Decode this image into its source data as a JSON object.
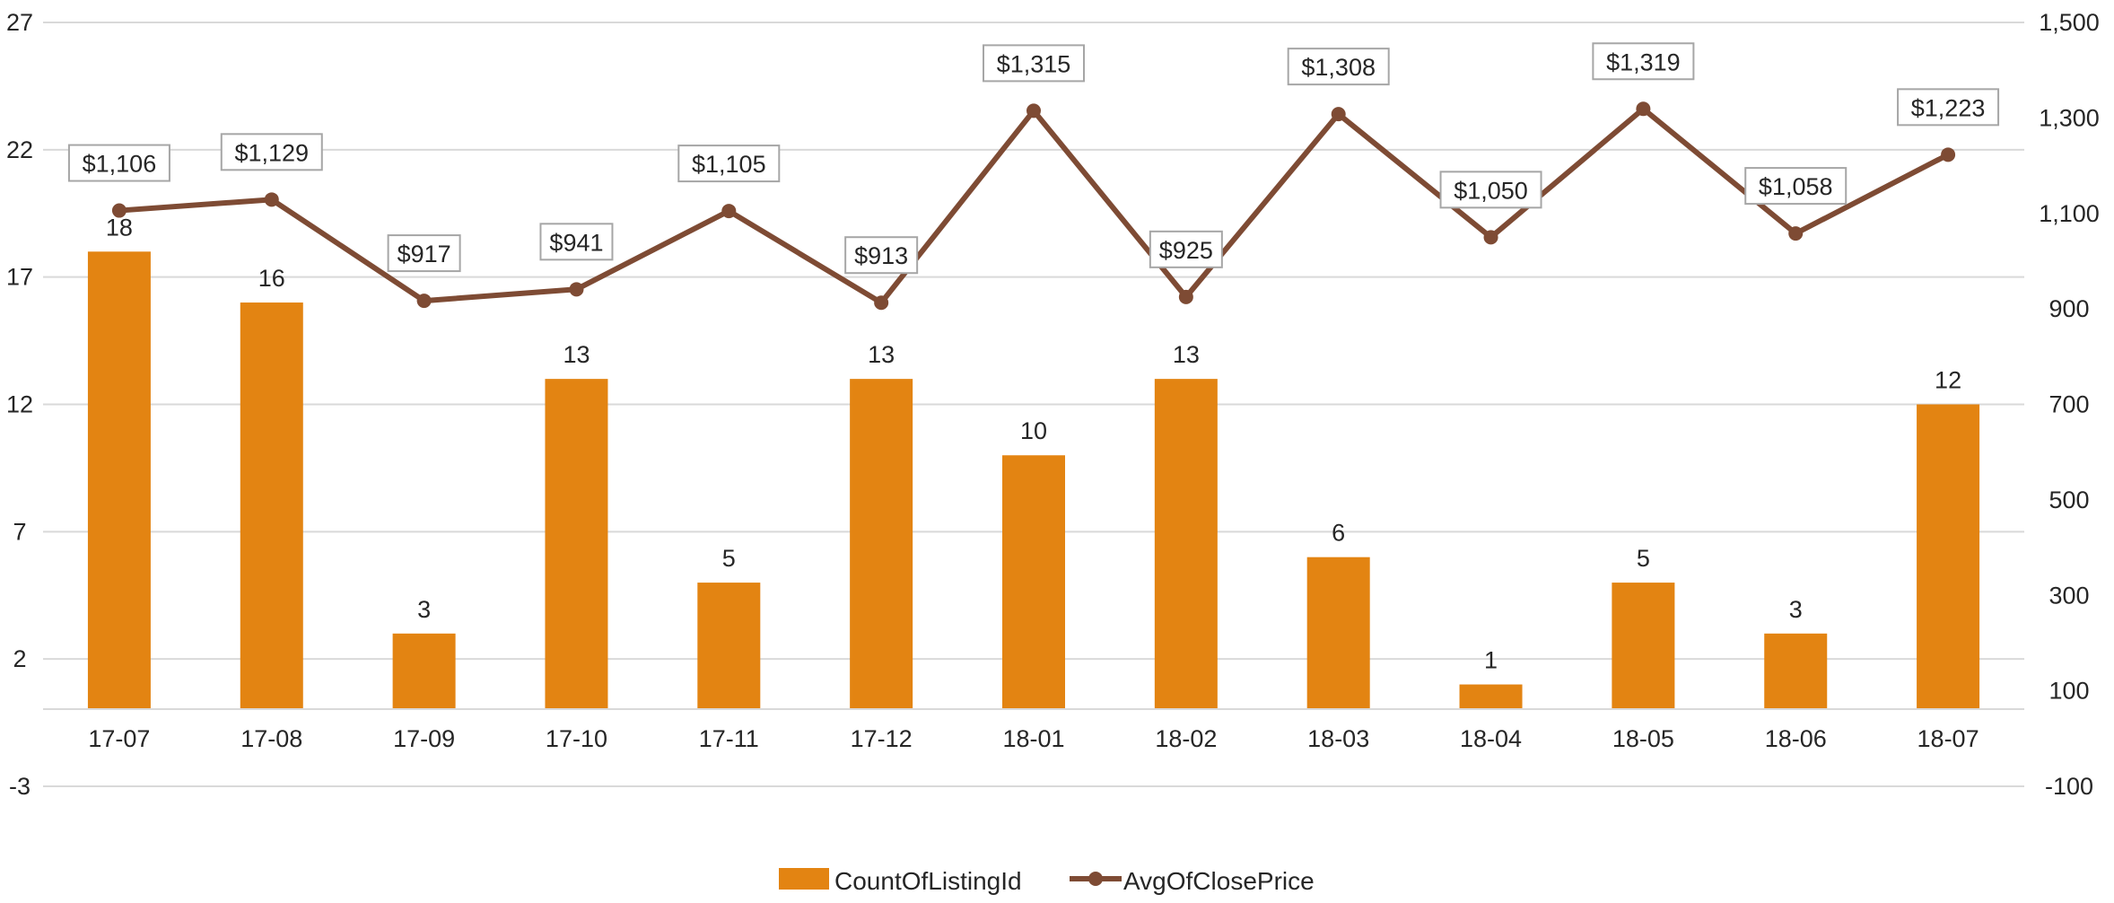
{
  "chart_data": {
    "type": "bar",
    "categories": [
      "17-07",
      "17-08",
      "17-09",
      "17-10",
      "17-11",
      "17-12",
      "18-01",
      "18-02",
      "18-03",
      "18-04",
      "18-05",
      "18-06",
      "18-07"
    ],
    "series": [
      {
        "name": "CountOfListingId",
        "type": "bar",
        "axis": "left",
        "color": "#E38412",
        "values": [
          18,
          16,
          3,
          13,
          5,
          13,
          10,
          13,
          6,
          1,
          5,
          3,
          12
        ],
        "data_labels": [
          "18",
          "16",
          "3",
          "13",
          "5",
          "13",
          "10",
          "13",
          "6",
          "1",
          "5",
          "3",
          "12"
        ]
      },
      {
        "name": "AvgOfClosePrice",
        "type": "line",
        "axis": "right",
        "color": "#7E4B34",
        "values": [
          1106,
          1129,
          917,
          941,
          1105,
          913,
          1315,
          925,
          1308,
          1050,
          1319,
          1058,
          1223
        ],
        "data_labels": [
          "$1,106",
          "$1,129",
          "$917",
          "$941",
          "$1,105",
          "$913",
          "$1,315",
          "$925",
          "$1,308",
          "$1,050",
          "$1,319",
          "$1,058",
          "$1,223"
        ]
      }
    ],
    "y_left": {
      "ylim": [
        -3,
        27
      ],
      "ticks": [
        27,
        22,
        17,
        12,
        7,
        2,
        -3
      ],
      "tick_labels": [
        "27",
        "22",
        "17",
        "12",
        "7",
        "2",
        "-3"
      ]
    },
    "y_right": {
      "ylim": [
        -100,
        1500
      ],
      "ticks": [
        1500,
        1300,
        1100,
        900,
        700,
        500,
        300,
        100,
        -100
      ],
      "tick_labels": [
        "1,500",
        "1,300",
        "1,100",
        "900",
        "700",
        "500",
        "300",
        "100",
        "-100"
      ]
    },
    "grid": true,
    "grid_color": "#D9D9D9",
    "legend_position": "bottom-center",
    "legend": [
      {
        "label": "CountOfListingId",
        "marker": "bar",
        "color": "#E38412"
      },
      {
        "label": "AvgOfClosePrice",
        "marker": "line-dot",
        "color": "#7E4B34"
      }
    ],
    "title": "",
    "xlabel": "",
    "ylabel": ""
  }
}
